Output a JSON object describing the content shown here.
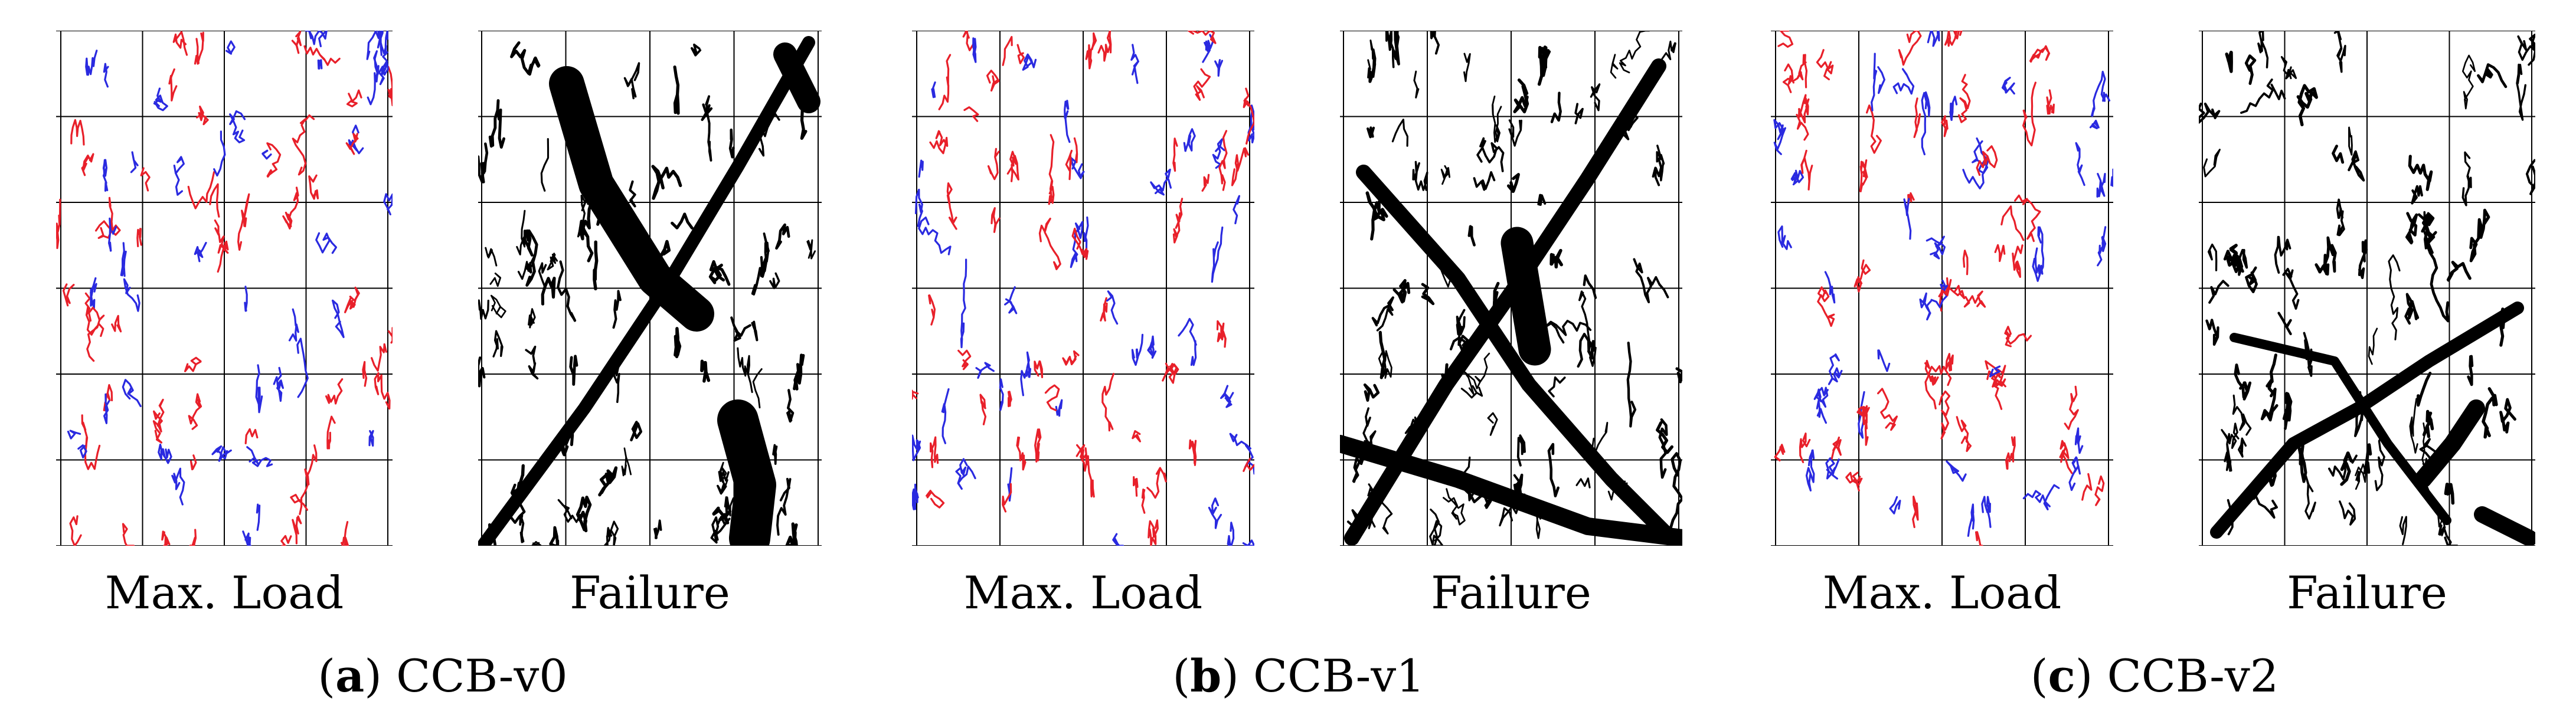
{
  "figure": {
    "groups": [
      {
        "caption_open": "(",
        "caption_letter": "a",
        "caption_close": ")",
        "caption_text": " CCB-v0",
        "panels": [
          {
            "label": "Max. Load",
            "kind": "maxload"
          },
          {
            "label": "Failure",
            "kind": "failure"
          }
        ]
      },
      {
        "caption_open": "(",
        "caption_letter": "b",
        "caption_close": ")",
        "caption_text": " CCB-v1",
        "panels": [
          {
            "label": "Max. Load",
            "kind": "maxload"
          },
          {
            "label": "Failure",
            "kind": "failure"
          }
        ]
      },
      {
        "caption_open": "(",
        "caption_letter": "c",
        "caption_close": ")",
        "caption_text": " CCB-v2",
        "panels": [
          {
            "label": "Max. Load",
            "kind": "maxload"
          },
          {
            "label": "Failure",
            "kind": "failure"
          }
        ]
      }
    ],
    "colors": {
      "crack_red": "#e8202a",
      "crack_blue": "#2a2ae0",
      "crack_black": "#000000",
      "grid": "#000000"
    }
  }
}
